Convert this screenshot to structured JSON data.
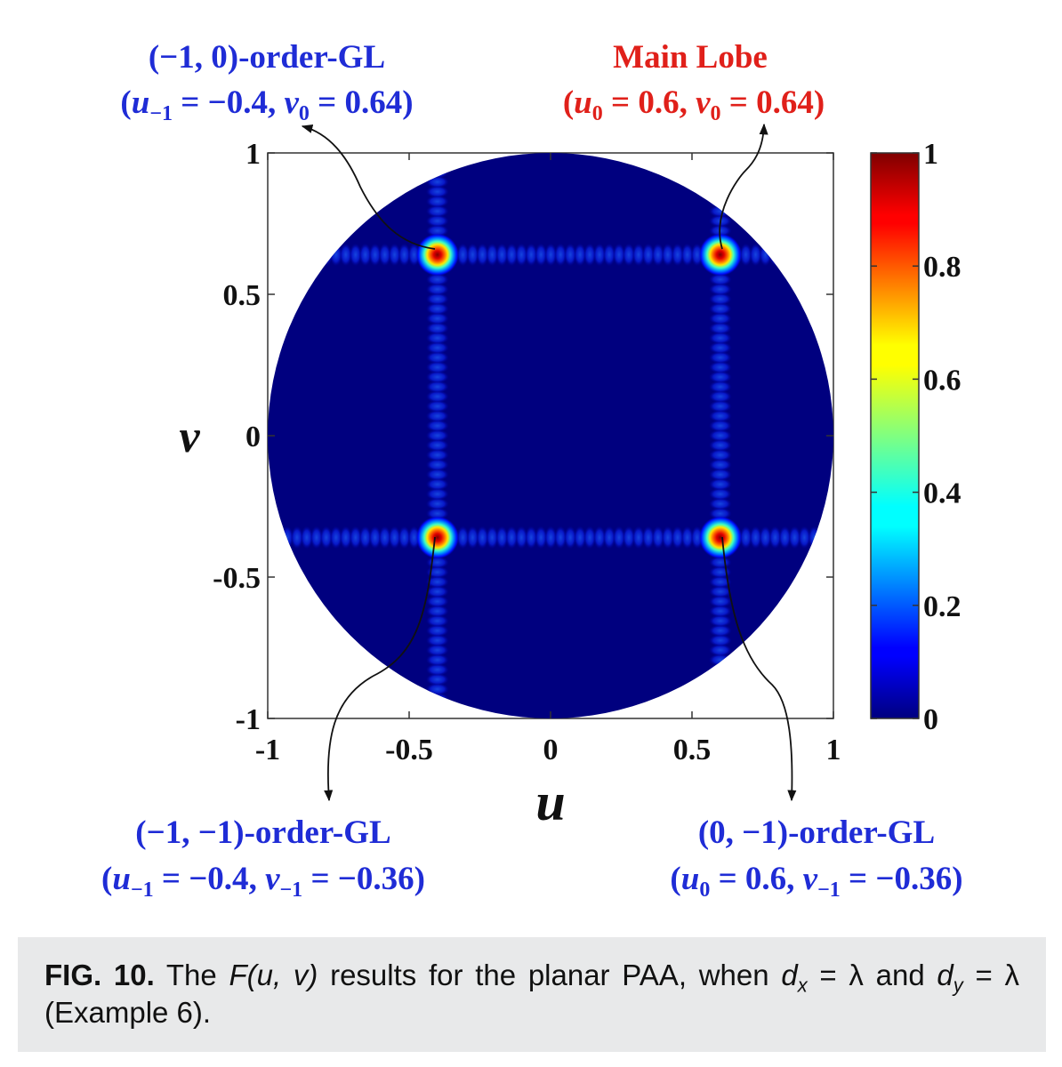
{
  "chart_data": {
    "type": "heatmap",
    "description_values": "normalized array factor magnitude F(u, v) over the visible region u^2 + v^2 <= 1",
    "xlabel": "u",
    "ylabel": "v",
    "xlim": [
      -1,
      1
    ],
    "ylim": [
      -1,
      1
    ],
    "x_ticks": [
      "-1",
      "-0.5",
      "0",
      "0.5",
      "1"
    ],
    "y_ticks": [
      "1",
      "0.5",
      "0",
      "-0.5",
      "-1"
    ],
    "x_tick_values": [
      -1,
      -0.5,
      0,
      0.5,
      1
    ],
    "y_tick_values": [
      1,
      0.5,
      0,
      -0.5,
      -1
    ],
    "colorbar": {
      "min": 0,
      "max": 1,
      "ticks": [
        "1",
        "0.8",
        "0.6",
        "0.4",
        "0.2",
        "0"
      ],
      "tick_values": [
        1,
        0.8,
        0.6,
        0.4,
        0.2,
        0
      ],
      "colormap": "jet"
    },
    "peaks": [
      {
        "u": 0.6,
        "v": 0.64,
        "value": 1
      },
      {
        "u": -0.4,
        "v": 0.64,
        "value": 1
      },
      {
        "u": -0.4,
        "v": -0.36,
        "value": 1
      },
      {
        "u": 0.6,
        "v": -0.36,
        "value": 1
      }
    ],
    "annotations": [
      {
        "title": "Main Lobe",
        "u_sym": "u",
        "u_sub": "0",
        "u_val": "0.6",
        "v_sym": "v",
        "v_sub": "0",
        "v_val": "0.64",
        "u": 0.6,
        "v": 0.64,
        "color": "#e0201a"
      },
      {
        "title": "(−1, 0)-order-GL",
        "u_sym": "u",
        "u_sub": "−1",
        "u_val": "−0.4",
        "v_sym": "v",
        "v_sub": "0",
        "v_val": "0.64",
        "u": -0.4,
        "v": 0.64,
        "color": "#1f2cd6"
      },
      {
        "title": "(−1, −1)-order-GL",
        "u_sym": "u",
        "u_sub": "−1",
        "u_val": "−0.4",
        "v_sym": "v",
        "v_sub": "−1",
        "v_val": "−0.36",
        "u": -0.4,
        "v": -0.36,
        "color": "#1f2cd6"
      },
      {
        "title": "(0, −1)-order-GL",
        "u_sym": "u",
        "u_sub": "0",
        "u_val": "0.6",
        "v_sym": "v",
        "v_sub": "−1",
        "v_val": "−0.36",
        "u": 0.6,
        "v": -0.36,
        "color": "#1f2cd6"
      }
    ],
    "grid": false
  },
  "caption": {
    "label": "FIG. 10.",
    "text_1": "The",
    "F": "F",
    "args": "(u, v)",
    "text_2": "results for the planar PAA, when",
    "dx_d": "d",
    "dx_sub": "x",
    "eq_1": "= λ",
    "and": "and",
    "dy_d": "d",
    "dy_sub": "y",
    "eq_2": "= λ",
    "text_3": "(Example 6)."
  },
  "colors": {
    "background_dark": "#00007f",
    "annotation_red": "#e0201a",
    "annotation_blue": "#1f2cd6",
    "caption_bg": "#e8e9ea"
  }
}
